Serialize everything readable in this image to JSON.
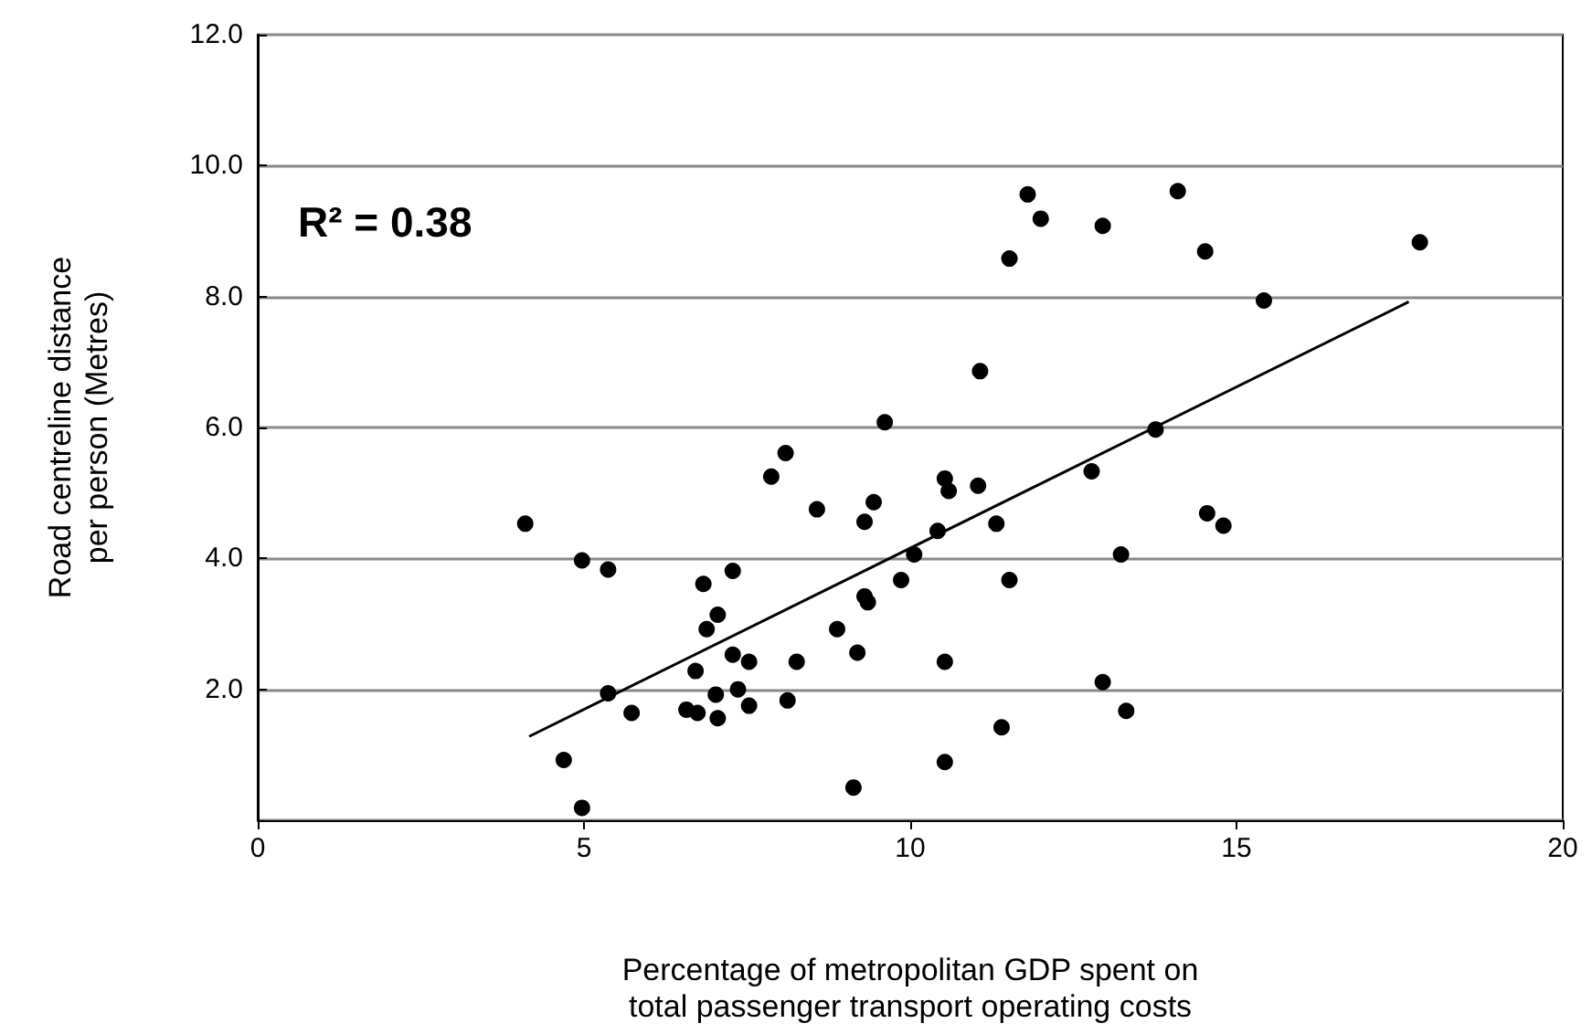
{
  "chart_data": {
    "type": "scatter",
    "xlabel": "Percentage of metropolitan GDP spent on\ntotal passenger transport operating costs",
    "ylabel": "Road centreline distance\nper person (Metres)",
    "annotations": [
      "R² = 0.38"
    ],
    "xlim": [
      0,
      20
    ],
    "xticks": [
      0,
      5,
      10,
      15,
      20
    ],
    "ylim": [
      0,
      12
    ],
    "yticks": [
      {
        "value": 0,
        "label": null
      },
      {
        "value": 2,
        "label": "2.0"
      },
      {
        "value": 4,
        "label": "4.0"
      },
      {
        "value": 6,
        "label": "6.0"
      },
      {
        "value": 8,
        "label": "8.0"
      },
      {
        "value": 10,
        "label": "10.0"
      },
      {
        "value": 12,
        "label": "12.0"
      }
    ],
    "grid": "y",
    "series": [
      {
        "color": "#000000",
        "x": [
          4.1,
          4.69,
          4.97,
          4.97,
          5.37,
          5.37,
          5.73,
          6.57,
          6.71,
          6.74,
          6.83,
          6.88,
          7.05,
          7.02,
          7.05,
          7.28,
          7.28,
          7.36,
          7.53,
          7.53,
          7.87,
          8.09,
          8.12,
          8.26,
          8.57,
          8.88,
          9.13,
          9.19,
          9.3,
          9.3,
          9.35,
          9.44,
          9.61,
          9.86,
          10.06,
          10.42,
          10.53,
          10.59,
          10.53,
          10.53,
          11.04,
          11.07,
          11.32,
          11.4,
          11.52,
          11.52,
          11.8,
          12.0,
          12.78,
          12.95,
          12.95,
          13.23,
          13.31,
          13.76,
          14.1,
          14.52,
          14.55,
          14.8,
          15.42,
          17.81
        ],
        "values": [
          4.53,
          0.92,
          0.19,
          3.97,
          3.83,
          1.94,
          1.64,
          1.69,
          2.28,
          1.64,
          3.61,
          2.92,
          3.14,
          1.92,
          1.56,
          2.53,
          3.81,
          2.0,
          1.75,
          2.42,
          5.25,
          5.61,
          1.83,
          2.42,
          4.75,
          2.92,
          0.5,
          2.56,
          4.56,
          3.42,
          3.33,
          4.86,
          6.08,
          3.67,
          4.06,
          4.42,
          5.22,
          5.03,
          2.42,
          0.89,
          5.11,
          6.86,
          4.53,
          1.42,
          8.58,
          3.67,
          9.56,
          9.19,
          5.33,
          2.11,
          9.08,
          4.06,
          1.67,
          5.97,
          9.61,
          8.69,
          4.69,
          4.5,
          7.94,
          8.83
        ]
      },
      {
        "type": "line",
        "color": "#000000",
        "x": [
          4.16,
          17.64
        ],
        "values": [
          1.28,
          7.92
        ]
      }
    ]
  }
}
